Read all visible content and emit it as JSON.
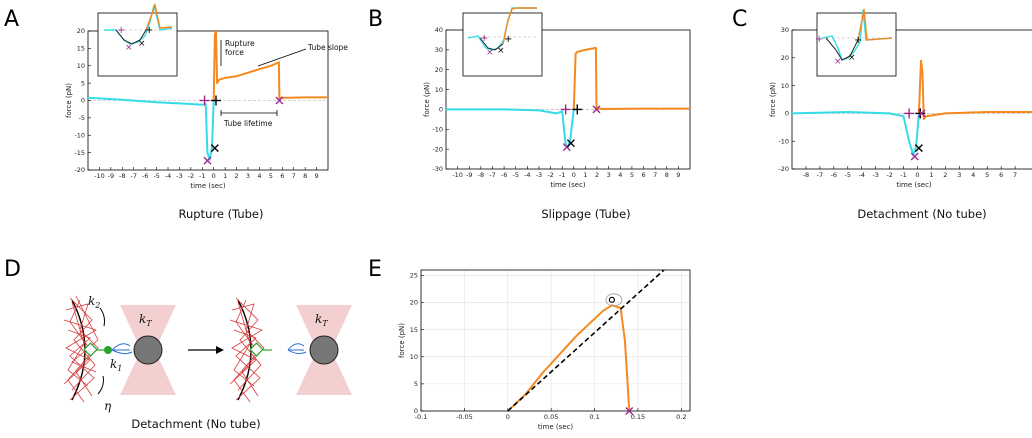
{
  "panels": {
    "A": {
      "letter": "A",
      "caption": "Rupture (Tube)"
    },
    "B": {
      "letter": "B",
      "caption": "Slippage (Tube)"
    },
    "C": {
      "letter": "C",
      "caption": "Detachment (No tube)"
    },
    "D": {
      "letter": "D",
      "caption": "Detachment (No tube)"
    },
    "E": {
      "letter": "E"
    }
  },
  "diagram": {
    "labels": {
      "k2": "k",
      "k2_sub": "2",
      "k1": "k",
      "k1_sub": "1",
      "eta": "η",
      "kT": "k",
      "kT_sub": "T"
    },
    "colors": {
      "network": "#d83a3a",
      "trap": "#f3cfcf",
      "bead": "#777777",
      "linker": "#2a6fd6",
      "anchor": "#2aa52a"
    }
  },
  "colors": {
    "before": "#35dbe6",
    "after": "#f5891f",
    "rupture_mark": "#9b2b8e",
    "mark": "#000000",
    "dashed": "#aaaaaa"
  },
  "chart_data": [
    {
      "id": "A",
      "type": "line",
      "xlabel": "time (sec)",
      "ylabel": "force (pN)",
      "xlim": [
        -11,
        10
      ],
      "ylim": [
        -20,
        20
      ],
      "xticks": [
        -10,
        -9,
        -8,
        -7,
        -6,
        -5,
        -4,
        -3,
        -2,
        -1,
        0,
        1,
        2,
        3,
        4,
        5,
        6,
        7,
        8,
        9
      ],
      "yticks": [
        -20,
        -15,
        -10,
        -5,
        0,
        5,
        10,
        15,
        20
      ],
      "series": [
        {
          "color_key": "before",
          "x": [
            -11,
            -8,
            -5,
            -2,
            -1,
            -0.7,
            -0.55,
            -0.35,
            -0.15,
            0
          ],
          "y": [
            0.8,
            0.2,
            -0.5,
            -1.0,
            -1.2,
            -1.0,
            -15,
            -17,
            -13.5,
            0
          ]
        },
        {
          "color_key": "after",
          "x": [
            0,
            0.1,
            0.2,
            0.3,
            0.5,
            1,
            2,
            3,
            4,
            5,
            5.7,
            5.75,
            5.8,
            6.5,
            8,
            10
          ],
          "y": [
            0,
            19,
            20,
            5,
            6,
            6.5,
            7,
            8,
            9,
            10,
            11,
            0.5,
            0.8,
            0.8,
            0.9,
            0.9
          ]
        }
      ],
      "markers": [
        {
          "x": -0.8,
          "y": 0,
          "symbol": "+",
          "color_key": "rupture_mark"
        },
        {
          "x": 0.2,
          "y": 0,
          "symbol": "+",
          "color_key": "mark"
        },
        {
          "x": -0.55,
          "y": -17.3,
          "symbol": "x",
          "color_key": "rupture_mark"
        },
        {
          "x": 0.1,
          "y": -13.7,
          "symbol": "x",
          "color_key": "mark"
        },
        {
          "x": 5.75,
          "y": 0,
          "symbol": "x",
          "color_key": "rupture_mark"
        }
      ],
      "annotations": {
        "rupture_force": [
          "Rupture",
          "force"
        ],
        "tube_slope": "Tube slope",
        "tube_lifetime": "Tube lifetime"
      }
    },
    {
      "id": "B",
      "type": "line",
      "xlabel": "time (sec)",
      "ylabel": "force (pN)",
      "xlim": [
        -11,
        10
      ],
      "ylim": [
        -30,
        40
      ],
      "xticks": [
        -10,
        -9,
        -8,
        -7,
        -6,
        -5,
        -4,
        -3,
        -2,
        -1,
        0,
        1,
        2,
        3,
        4,
        5,
        6,
        7,
        8,
        9
      ],
      "yticks": [
        -30,
        -20,
        -10,
        0,
        10,
        20,
        30,
        40
      ],
      "series": [
        {
          "color_key": "before",
          "x": [
            -11,
            -6,
            -3,
            -1.5,
            -1,
            -0.7,
            -0.5,
            -0.3,
            0
          ],
          "y": [
            0,
            0,
            -0.5,
            -2,
            -1,
            -18,
            -19,
            -15,
            0
          ]
        },
        {
          "color_key": "after",
          "x": [
            0,
            0.15,
            0.3,
            1,
            1.9,
            1.95,
            2.5,
            6,
            10
          ],
          "y": [
            0,
            28,
            29,
            30,
            31,
            0.5,
            0.2,
            0.4,
            0.4
          ]
        }
      ],
      "markers": [
        {
          "x": -0.7,
          "y": 0,
          "symbol": "+",
          "color_key": "rupture_mark"
        },
        {
          "x": 0.3,
          "y": 0,
          "symbol": "+",
          "color_key": "mark"
        },
        {
          "x": -0.6,
          "y": -19,
          "symbol": "x",
          "color_key": "rupture_mark"
        },
        {
          "x": -0.25,
          "y": -17,
          "symbol": "x",
          "color_key": "mark"
        },
        {
          "x": 1.95,
          "y": 0,
          "symbol": "x",
          "color_key": "rupture_mark"
        }
      ]
    },
    {
      "id": "C",
      "type": "line",
      "xlabel": "time (sec)",
      "ylabel": "force (pN)",
      "xlim": [
        -9,
        8.5
      ],
      "ylim": [
        -20,
        30
      ],
      "xticks": [
        -8,
        -7,
        -6,
        -5,
        -4,
        -3,
        -2,
        -1,
        0,
        1,
        2,
        3,
        4,
        5,
        6,
        7
      ],
      "yticks": [
        -20,
        -10,
        0,
        10,
        20,
        30
      ],
      "series": [
        {
          "color_key": "before",
          "x": [
            -9,
            -5,
            -2,
            -1,
            -0.6,
            -0.3,
            -0.1,
            0.1
          ],
          "y": [
            0,
            0.5,
            0,
            -1,
            -10,
            -15,
            -12,
            0
          ]
        },
        {
          "color_key": "after",
          "x": [
            0.1,
            0.25,
            0.35,
            0.45,
            0.6,
            2,
            5,
            8.5
          ],
          "y": [
            0,
            19,
            15,
            -2,
            -1,
            0,
            0.5,
            0.5
          ]
        }
      ],
      "markers": [
        {
          "x": -0.6,
          "y": 0,
          "symbol": "+",
          "color_key": "rupture_mark"
        },
        {
          "x": 0.2,
          "y": 0,
          "symbol": "+",
          "color_key": "mark"
        },
        {
          "x": -0.2,
          "y": -15.5,
          "symbol": "x",
          "color_key": "rupture_mark"
        },
        {
          "x": 0.1,
          "y": -12.5,
          "symbol": "x",
          "color_key": "mark"
        },
        {
          "x": 0.3,
          "y": 0,
          "symbol": "x",
          "color_key": "rupture_mark"
        }
      ]
    },
    {
      "id": "E",
      "type": "line",
      "xlabel": "time (sec)",
      "ylabel": "force (pN)",
      "xlim": [
        -0.1,
        0.21
      ],
      "ylim": [
        0,
        26
      ],
      "grid": true,
      "xticks": [
        -0.1,
        -0.05,
        0,
        0.05,
        0.1,
        0.15,
        0.2
      ],
      "xticklabels": [
        "-0.1",
        "-0.05",
        "0",
        "0.05",
        "0.1",
        "0.15",
        "0.2"
      ],
      "yticks": [
        0,
        5,
        10,
        15,
        20,
        25
      ],
      "series": [
        {
          "color_key": "after",
          "x": [
            0,
            0.02,
            0.04,
            0.06,
            0.08,
            0.1,
            0.11,
            0.12,
            0.13,
            0.135,
            0.14
          ],
          "y": [
            0,
            3,
            7,
            10.5,
            14,
            17,
            18.5,
            19.5,
            19,
            13,
            0
          ]
        }
      ],
      "fit_line": {
        "x": [
          0,
          0.18
        ],
        "y": [
          0,
          26
        ]
      },
      "markers": [
        {
          "x": 0.12,
          "y": 20.5,
          "symbol": "o",
          "color_key": "mark"
        },
        {
          "x": 0.14,
          "y": 0,
          "symbol": "x",
          "color_key": "rupture_mark"
        }
      ]
    }
  ]
}
